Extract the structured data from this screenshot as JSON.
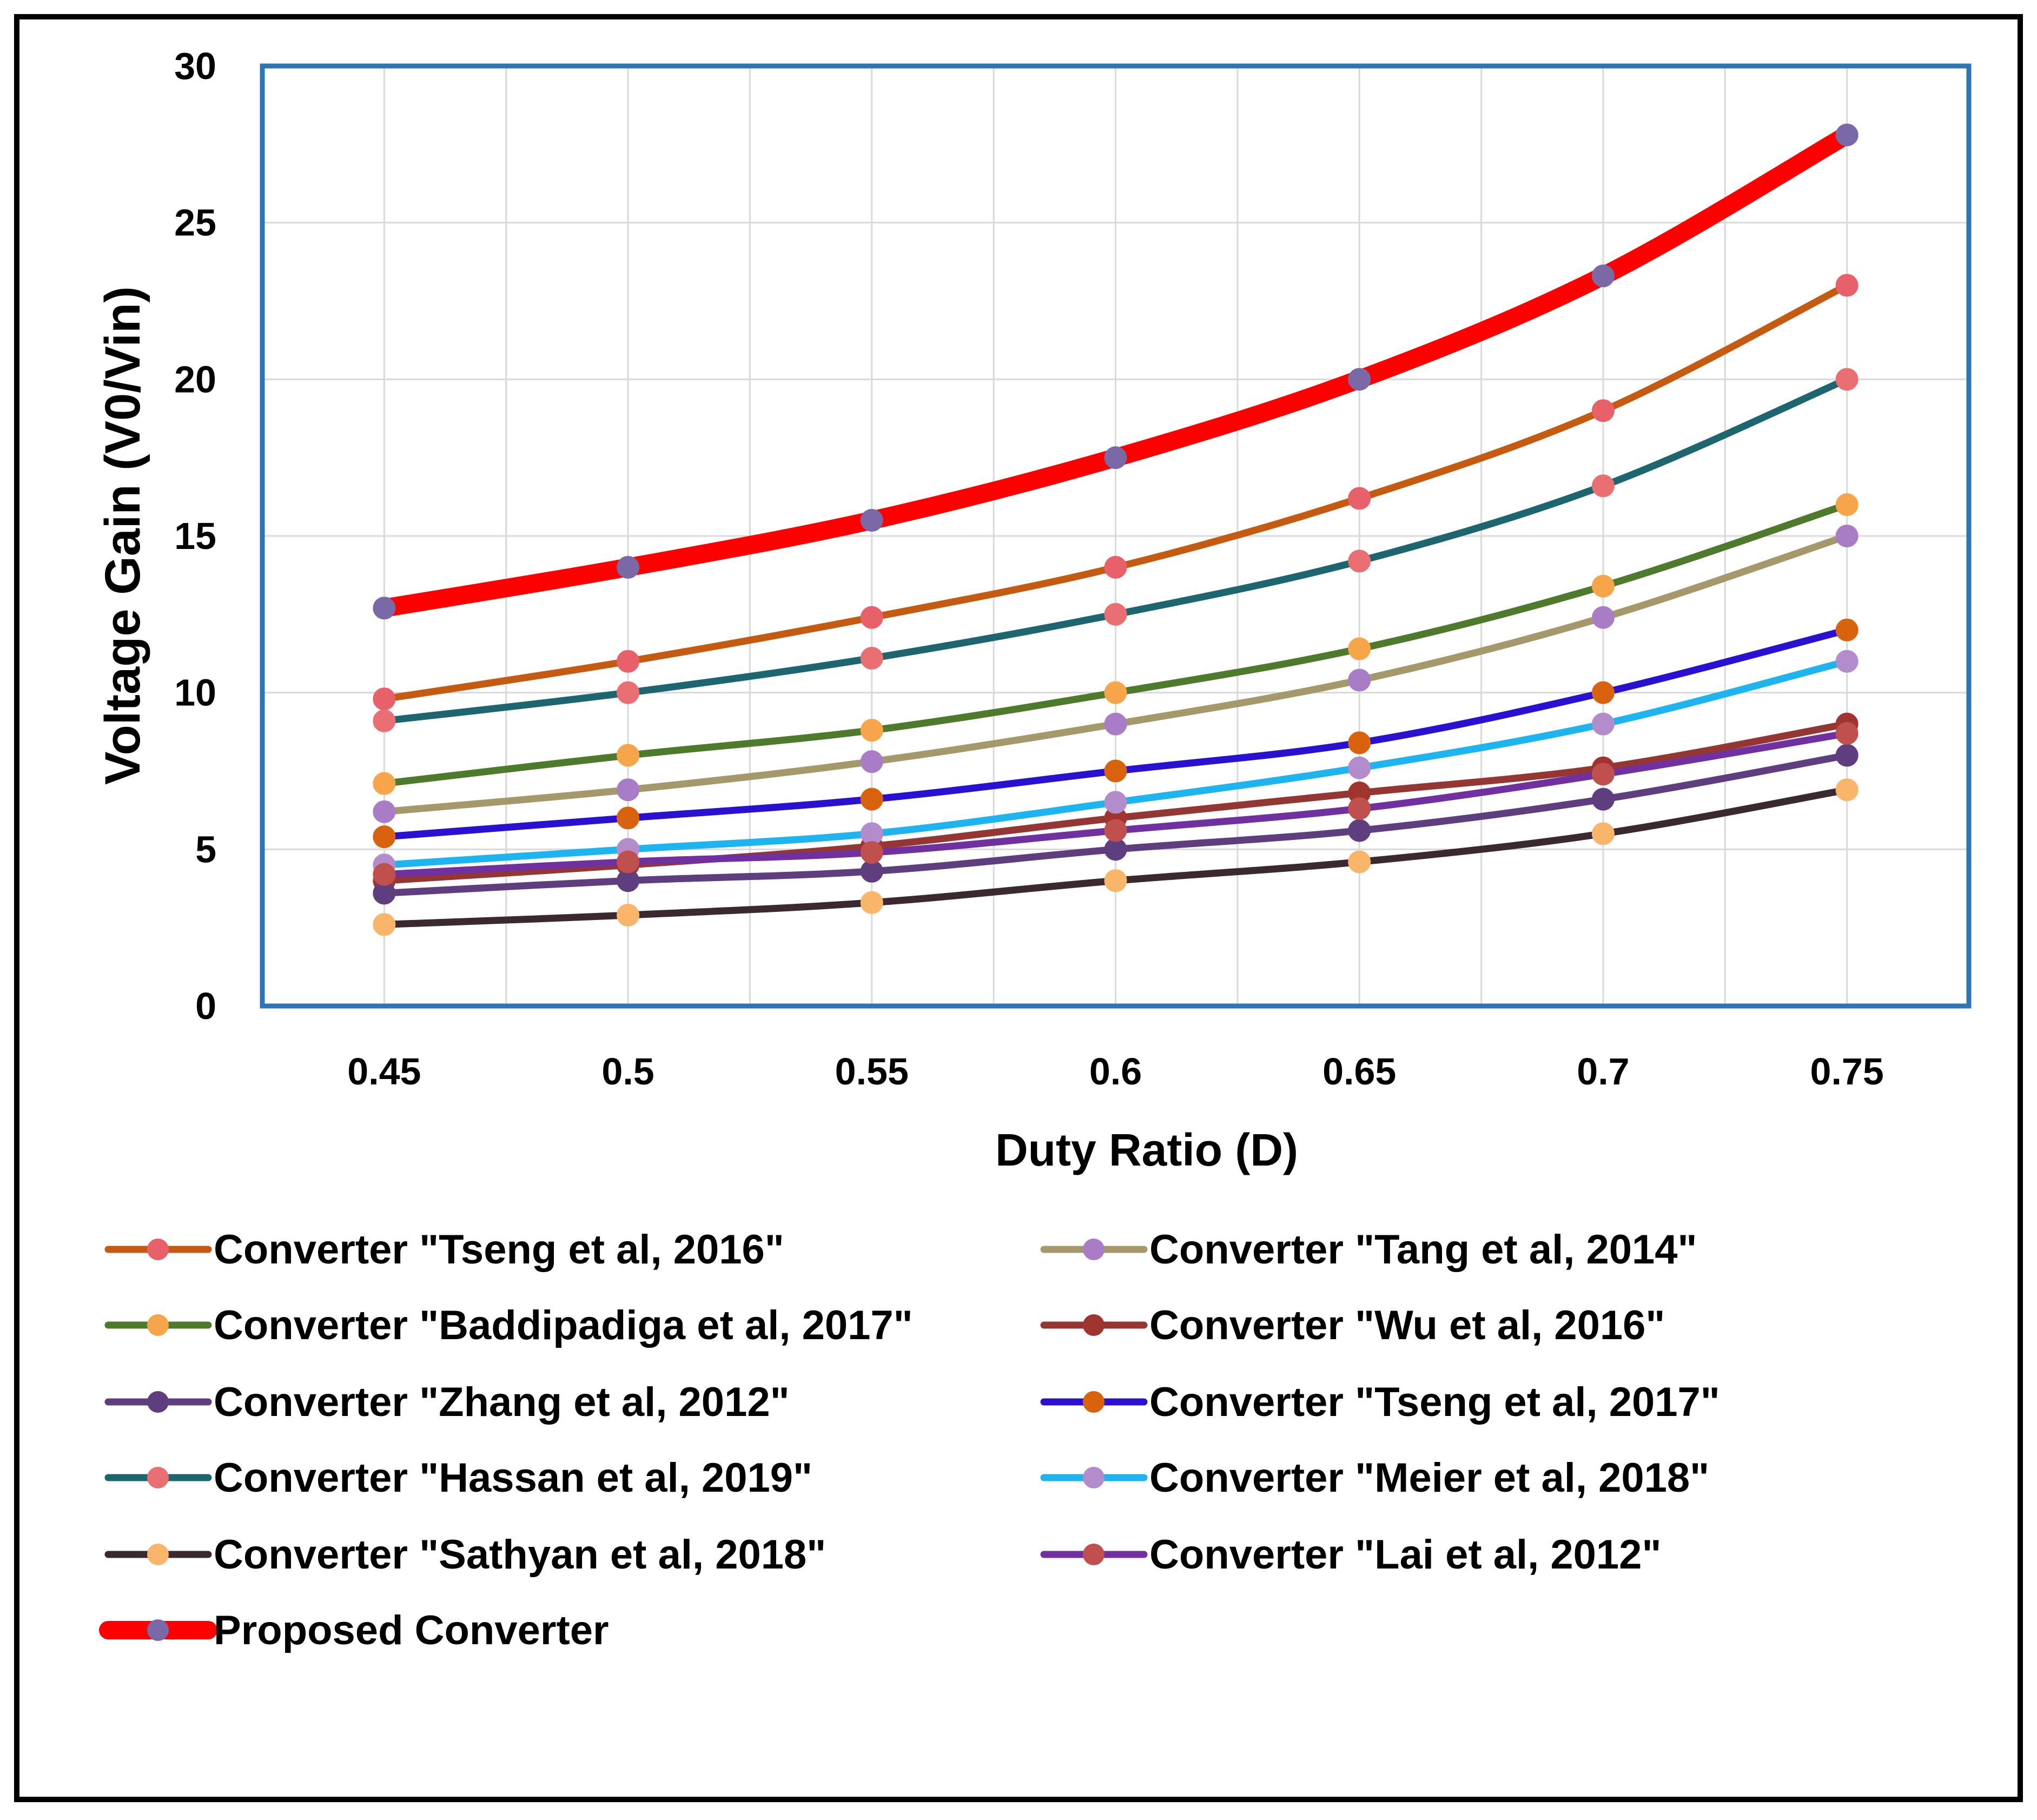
{
  "chart_data": {
    "type": "line",
    "title": "",
    "xlabel": "Duty Ratio (D)",
    "ylabel": "Voltage Gain (V0/Vin)",
    "x": [
      0.45,
      0.5,
      0.55,
      0.6,
      0.65,
      0.7,
      0.75
    ],
    "x_tick_labels": [
      "0.45",
      "0.5",
      "0.55",
      "0.6",
      "0.65",
      "0.7",
      "0.75"
    ],
    "y_ticks": [
      0,
      5,
      10,
      15,
      20,
      25,
      30
    ],
    "y_tick_labels": [
      "0",
      "5",
      "10",
      "15",
      "20",
      "25",
      "30"
    ],
    "ylim": [
      0,
      30
    ],
    "grid": true,
    "plot_border_color": "#2E75B6",
    "legend_position": "bottom",
    "series": [
      {
        "name": "Converter \"Tseng et al, 2016\"",
        "line_color": "#C55A11",
        "marker_color": "#E8606A",
        "emphasis": false,
        "values": [
          9.8,
          11.0,
          12.4,
          14.0,
          16.2,
          19.0,
          23.0
        ]
      },
      {
        "name": "Converter \"Tang  et al, 2014\"",
        "line_color": "#A5986A",
        "marker_color": "#A87DC6",
        "emphasis": false,
        "values": [
          6.2,
          6.9,
          7.8,
          9.0,
          10.4,
          12.4,
          15.0
        ]
      },
      {
        "name": "Converter \"Baddipadiga et al, 2017\"",
        "line_color": "#4E7A2C",
        "marker_color": "#F7A54A",
        "emphasis": false,
        "values": [
          7.1,
          8.0,
          8.8,
          10.0,
          11.4,
          13.4,
          16.0
        ]
      },
      {
        "name": "Converter \"Wu et al, 2016\"",
        "line_color": "#943634",
        "marker_color": "#A0342E",
        "emphasis": false,
        "values": [
          4.0,
          4.5,
          5.1,
          6.0,
          6.8,
          7.6,
          9.0
        ]
      },
      {
        "name": "Converter \"Zhang et al, 2012\"",
        "line_color": "#5F3E7F",
        "marker_color": "#5F3E7F",
        "emphasis": false,
        "values": [
          3.6,
          4.0,
          4.3,
          5.0,
          5.6,
          6.6,
          8.0
        ]
      },
      {
        "name": "Converter \"Tseng et al, 2017\"",
        "line_color": "#2A10D0",
        "marker_color": "#D9620E",
        "emphasis": false,
        "values": [
          5.4,
          6.0,
          6.6,
          7.5,
          8.4,
          10.0,
          12.0
        ]
      },
      {
        "name": "Converter \"Hassan et al, 2019\"",
        "line_color": "#1D6670",
        "marker_color": "#EA6F72",
        "emphasis": false,
        "values": [
          9.1,
          10.0,
          11.1,
          12.5,
          14.2,
          16.6,
          20.0
        ]
      },
      {
        "name": "Converter \"Meier et al, 2018\"",
        "line_color": "#1EB4F0",
        "marker_color": "#B38CCB",
        "emphasis": false,
        "values": [
          4.5,
          5.0,
          5.5,
          6.5,
          7.6,
          9.0,
          11.0
        ]
      },
      {
        "name": "Converter \"Sathyan et al, 2018\"",
        "line_color": "#3A2A30",
        "marker_color": "#F9B56A",
        "emphasis": false,
        "values": [
          2.6,
          2.9,
          3.3,
          4.0,
          4.6,
          5.5,
          6.9
        ]
      },
      {
        "name": "Converter \"Lai et al, 2012\"",
        "line_color": "#7030A0",
        "marker_color": "#C0504D",
        "emphasis": false,
        "values": [
          4.2,
          4.6,
          4.9,
          5.6,
          6.3,
          7.4,
          8.7
        ]
      },
      {
        "name": "Proposed Converter",
        "line_color": "#FF0000",
        "marker_color": "#7B68A6",
        "emphasis": true,
        "values": [
          12.7,
          14.0,
          15.5,
          17.5,
          20.0,
          23.3,
          27.8
        ]
      }
    ],
    "legend_order": [
      0,
      1,
      2,
      3,
      4,
      5,
      6,
      7,
      8,
      9,
      10
    ]
  }
}
